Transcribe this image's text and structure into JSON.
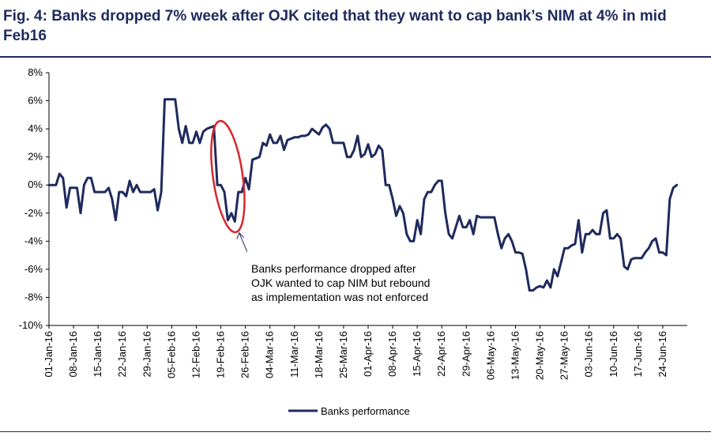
{
  "figure": {
    "title": "Fig. 4:  Banks dropped 7% week after OJK cited that they want to cap bank’s NIM at 4% in mid Feb16",
    "accent_color": "#1f2a5e",
    "highlight_color": "#d9262c"
  },
  "chart_data": {
    "type": "line",
    "xlabel": "",
    "ylabel": "",
    "ylim": [
      -10,
      8
    ],
    "y_ticks": [
      8,
      6,
      4,
      2,
      0,
      -2,
      -4,
      -6,
      -8,
      -10
    ],
    "y_tick_labels": [
      "8%",
      "6%",
      "4%",
      "2%",
      "0%",
      "-2%",
      "-4%",
      "-6%",
      "-8%",
      "-10%"
    ],
    "x_tick_labels": [
      "01-Jan-16",
      "08-Jan-16",
      "15-Jan-16",
      "22-Jan-16",
      "29-Jan-16",
      "05-Feb-16",
      "12-Feb-16",
      "19-Feb-16",
      "26-Feb-16",
      "04-Mar-16",
      "11-Mar-16",
      "18-Mar-16",
      "25-Mar-16",
      "01-Apr-16",
      "08-Apr-16",
      "15-Apr-16",
      "22-Apr-16",
      "29-Apr-16",
      "06-May-16",
      "13-May-16",
      "20-May-16",
      "27-May-16",
      "03-Jun-16",
      "10-Jun-16",
      "17-Jun-16",
      "24-Jun-16"
    ],
    "grid": false,
    "legend": {
      "position": "bottom-center",
      "entries": [
        "Banks performance"
      ]
    },
    "annotations": [
      {
        "lines": [
          "Banks performance dropped after",
          "OJK wanted to cap NIM but rebound",
          "as implementation was not enforced"
        ],
        "points_to_date": "2016-02-24",
        "highlight_range": [
          "2016-02-17",
          "2016-02-25"
        ]
      }
    ],
    "series": [
      {
        "name": "Banks performance",
        "color": "#1f2a5e",
        "points": [
          [
            "2016-01-01",
            0.0
          ],
          [
            "2016-01-03",
            0.0
          ],
          [
            "2016-01-04",
            0.8
          ],
          [
            "2016-01-05",
            0.5
          ],
          [
            "2016-01-06",
            -1.6
          ],
          [
            "2016-01-07",
            -0.2
          ],
          [
            "2016-01-08",
            -0.2
          ],
          [
            "2016-01-09",
            -0.2
          ],
          [
            "2016-01-10",
            -2.0
          ],
          [
            "2016-01-11",
            0.0
          ],
          [
            "2016-01-12",
            0.5
          ],
          [
            "2016-01-13",
            0.5
          ],
          [
            "2016-01-14",
            -0.5
          ],
          [
            "2016-01-15",
            -0.5
          ],
          [
            "2016-01-16",
            -0.5
          ],
          [
            "2016-01-17",
            -0.5
          ],
          [
            "2016-01-18",
            -0.2
          ],
          [
            "2016-01-19",
            -1.0
          ],
          [
            "2016-01-20",
            -2.5
          ],
          [
            "2016-01-21",
            -0.5
          ],
          [
            "2016-01-22",
            -0.5
          ],
          [
            "2016-01-23",
            -0.8
          ],
          [
            "2016-01-24",
            0.3
          ],
          [
            "2016-01-25",
            -0.5
          ],
          [
            "2016-01-26",
            0.0
          ],
          [
            "2016-01-27",
            -0.5
          ],
          [
            "2016-01-28",
            -0.5
          ],
          [
            "2016-01-29",
            -0.5
          ],
          [
            "2016-01-30",
            -0.5
          ],
          [
            "2016-01-31",
            -0.3
          ],
          [
            "2016-02-01",
            -1.8
          ],
          [
            "2016-02-02",
            -0.5
          ],
          [
            "2016-02-03",
            6.1
          ],
          [
            "2016-02-04",
            6.1
          ],
          [
            "2016-02-05",
            6.1
          ],
          [
            "2016-02-06",
            6.1
          ],
          [
            "2016-02-07",
            4.0
          ],
          [
            "2016-02-08",
            3.0
          ],
          [
            "2016-02-09",
            4.2
          ],
          [
            "2016-02-10",
            3.0
          ],
          [
            "2016-02-11",
            3.0
          ],
          [
            "2016-02-12",
            3.8
          ],
          [
            "2016-02-13",
            3.0
          ],
          [
            "2016-02-14",
            3.8
          ],
          [
            "2016-02-15",
            4.0
          ],
          [
            "2016-02-16",
            4.1
          ],
          [
            "2016-02-17",
            4.2
          ],
          [
            "2016-02-18",
            0.0
          ],
          [
            "2016-02-19",
            0.0
          ],
          [
            "2016-02-20",
            -0.5
          ],
          [
            "2016-02-21",
            -2.5
          ],
          [
            "2016-02-22",
            -2.0
          ],
          [
            "2016-02-23",
            -2.6
          ],
          [
            "2016-02-24",
            -0.5
          ],
          [
            "2016-02-25",
            -0.5
          ],
          [
            "2016-02-26",
            0.5
          ],
          [
            "2016-02-27",
            -0.3
          ],
          [
            "2016-02-28",
            1.8
          ],
          [
            "2016-03-01",
            2.0
          ],
          [
            "2016-03-02",
            3.0
          ],
          [
            "2016-03-03",
            2.8
          ],
          [
            "2016-03-04",
            3.6
          ],
          [
            "2016-03-05",
            3.0
          ],
          [
            "2016-03-06",
            3.0
          ],
          [
            "2016-03-07",
            3.5
          ],
          [
            "2016-03-08",
            2.5
          ],
          [
            "2016-03-09",
            3.2
          ],
          [
            "2016-03-10",
            3.3
          ],
          [
            "2016-03-11",
            3.4
          ],
          [
            "2016-03-12",
            3.4
          ],
          [
            "2016-03-13",
            3.5
          ],
          [
            "2016-03-14",
            3.5
          ],
          [
            "2016-03-15",
            3.6
          ],
          [
            "2016-03-16",
            4.0
          ],
          [
            "2016-03-17",
            3.8
          ],
          [
            "2016-03-18",
            3.6
          ],
          [
            "2016-03-19",
            4.1
          ],
          [
            "2016-03-20",
            4.3
          ],
          [
            "2016-03-21",
            4.0
          ],
          [
            "2016-03-22",
            3.0
          ],
          [
            "2016-03-23",
            3.0
          ],
          [
            "2016-03-24",
            3.0
          ],
          [
            "2016-03-25",
            3.0
          ],
          [
            "2016-03-26",
            2.0
          ],
          [
            "2016-03-27",
            2.0
          ],
          [
            "2016-03-28",
            2.5
          ],
          [
            "2016-03-29",
            3.5
          ],
          [
            "2016-03-30",
            2.0
          ],
          [
            "2016-03-31",
            2.2
          ],
          [
            "2016-04-01",
            2.9
          ],
          [
            "2016-04-02",
            2.0
          ],
          [
            "2016-04-03",
            2.2
          ],
          [
            "2016-04-04",
            2.8
          ],
          [
            "2016-04-05",
            2.5
          ],
          [
            "2016-04-06",
            0.0
          ],
          [
            "2016-04-07",
            0.0
          ],
          [
            "2016-04-08",
            -1.0
          ],
          [
            "2016-04-09",
            -2.2
          ],
          [
            "2016-04-10",
            -1.5
          ],
          [
            "2016-04-11",
            -2.0
          ],
          [
            "2016-04-12",
            -3.5
          ],
          [
            "2016-04-13",
            -4.0
          ],
          [
            "2016-04-14",
            -4.0
          ],
          [
            "2016-04-15",
            -2.5
          ],
          [
            "2016-04-16",
            -3.5
          ],
          [
            "2016-04-17",
            -1.0
          ],
          [
            "2016-04-18",
            -0.5
          ],
          [
            "2016-04-19",
            -0.5
          ],
          [
            "2016-04-20",
            0.0
          ],
          [
            "2016-04-21",
            0.3
          ],
          [
            "2016-04-22",
            0.3
          ],
          [
            "2016-04-23",
            -2.0
          ],
          [
            "2016-04-24",
            -3.5
          ],
          [
            "2016-04-25",
            -3.8
          ],
          [
            "2016-04-26",
            -3.0
          ],
          [
            "2016-04-27",
            -2.2
          ],
          [
            "2016-04-28",
            -3.0
          ],
          [
            "2016-04-29",
            -3.0
          ],
          [
            "2016-04-30",
            -2.5
          ],
          [
            "2016-05-01",
            -3.5
          ],
          [
            "2016-05-02",
            -2.2
          ],
          [
            "2016-05-03",
            -2.3
          ],
          [
            "2016-05-04",
            -2.3
          ],
          [
            "2016-05-05",
            -2.3
          ],
          [
            "2016-05-06",
            -2.3
          ],
          [
            "2016-05-07",
            -2.3
          ],
          [
            "2016-05-08",
            -3.5
          ],
          [
            "2016-05-09",
            -4.5
          ],
          [
            "2016-05-10",
            -3.8
          ],
          [
            "2016-05-11",
            -3.5
          ],
          [
            "2016-05-12",
            -4.0
          ],
          [
            "2016-05-13",
            -4.8
          ],
          [
            "2016-05-14",
            -4.8
          ],
          [
            "2016-05-15",
            -4.9
          ],
          [
            "2016-05-16",
            -6.0
          ],
          [
            "2016-05-17",
            -7.5
          ],
          [
            "2016-05-18",
            -7.5
          ],
          [
            "2016-05-19",
            -7.3
          ],
          [
            "2016-05-20",
            -7.2
          ],
          [
            "2016-05-21",
            -7.3
          ],
          [
            "2016-05-22",
            -6.8
          ],
          [
            "2016-05-23",
            -7.3
          ],
          [
            "2016-05-24",
            -6.0
          ],
          [
            "2016-05-25",
            -6.5
          ],
          [
            "2016-05-26",
            -5.5
          ],
          [
            "2016-05-27",
            -4.5
          ],
          [
            "2016-05-28",
            -4.5
          ],
          [
            "2016-05-29",
            -4.3
          ],
          [
            "2016-05-30",
            -4.2
          ],
          [
            "2016-05-31",
            -2.5
          ],
          [
            "2016-06-01",
            -4.8
          ],
          [
            "2016-06-02",
            -3.5
          ],
          [
            "2016-06-03",
            -3.5
          ],
          [
            "2016-06-04",
            -3.2
          ],
          [
            "2016-06-05",
            -3.5
          ],
          [
            "2016-06-06",
            -3.5
          ],
          [
            "2016-06-07",
            -2.0
          ],
          [
            "2016-06-08",
            -1.8
          ],
          [
            "2016-06-09",
            -3.8
          ],
          [
            "2016-06-10",
            -3.8
          ],
          [
            "2016-06-11",
            -3.5
          ],
          [
            "2016-06-12",
            -3.8
          ],
          [
            "2016-06-13",
            -5.8
          ],
          [
            "2016-06-14",
            -6.0
          ],
          [
            "2016-06-15",
            -5.3
          ],
          [
            "2016-06-16",
            -5.2
          ],
          [
            "2016-06-17",
            -5.2
          ],
          [
            "2016-06-18",
            -5.2
          ],
          [
            "2016-06-19",
            -4.8
          ],
          [
            "2016-06-20",
            -4.5
          ],
          [
            "2016-06-21",
            -4.0
          ],
          [
            "2016-06-22",
            -3.8
          ],
          [
            "2016-06-23",
            -4.8
          ],
          [
            "2016-06-24",
            -4.8
          ],
          [
            "2016-06-25",
            -5.0
          ],
          [
            "2016-06-26",
            -1.0
          ],
          [
            "2016-06-27",
            -0.2
          ],
          [
            "2016-06-28",
            0.0
          ]
        ]
      }
    ]
  }
}
